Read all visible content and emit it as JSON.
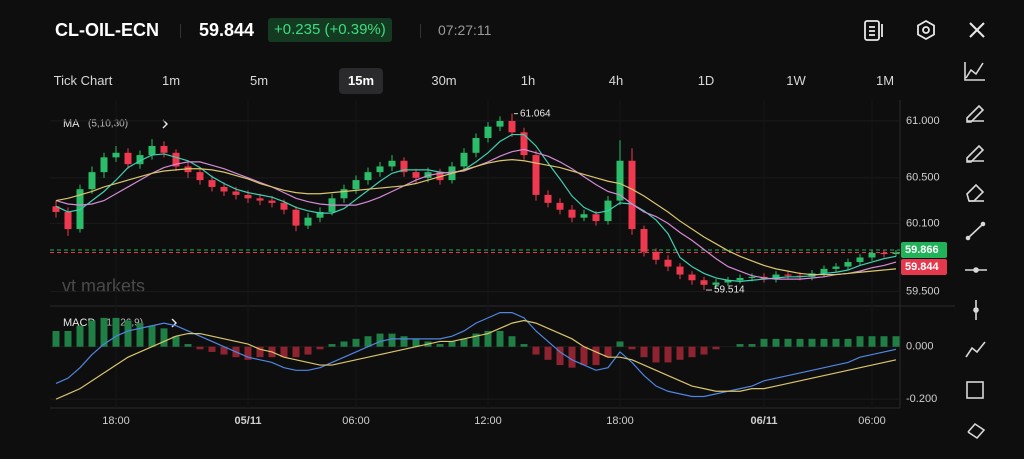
{
  "header": {
    "symbol": "CL-OIL-ECN",
    "price": "59.844",
    "change": "+0.235 (+0.39%)",
    "time": "07:27:11"
  },
  "timeframes": [
    "Tick Chart",
    "1m",
    "5m",
    "15m",
    "30m",
    "1h",
    "4h",
    "1D",
    "1W",
    "1M"
  ],
  "chart_data": [
    {
      "type": "candlestick",
      "indicator": "MA",
      "indicator_params": "(5,10,30)",
      "watermark": "vt markets",
      "up_color": "#2bbd6a",
      "down_color": "#f0394f",
      "categories": [
        null,
        null,
        null,
        null,
        null,
        "18:00",
        null,
        null,
        null,
        null,
        null,
        null,
        null,
        null,
        null,
        null,
        "05/11",
        null,
        null,
        null,
        null,
        null,
        null,
        null,
        null,
        "06:00",
        null,
        null,
        null,
        null,
        null,
        null,
        null,
        null,
        null,
        null,
        "12:00",
        null,
        null,
        null,
        null,
        null,
        null,
        null,
        null,
        null,
        null,
        "18:00",
        null,
        null,
        null,
        null,
        null,
        null,
        null,
        null,
        null,
        null,
        null,
        "06/11",
        null,
        null,
        null,
        null,
        null,
        null,
        null,
        null,
        "06:00",
        null,
        null
      ],
      "candles": [
        [
          60.25,
          60.3,
          60.15,
          60.2
        ],
        [
          60.2,
          60.24,
          59.99,
          60.05
        ],
        [
          60.05,
          60.44,
          60.02,
          60.4
        ],
        [
          60.4,
          60.6,
          60.36,
          60.55
        ],
        [
          60.55,
          60.72,
          60.5,
          60.68
        ],
        [
          60.68,
          60.78,
          60.64,
          60.72
        ],
        [
          60.72,
          60.76,
          60.58,
          60.62
        ],
        [
          60.62,
          60.74,
          60.58,
          60.7
        ],
        [
          60.7,
          60.84,
          60.66,
          60.78
        ],
        [
          60.78,
          60.82,
          60.68,
          60.72
        ],
        [
          60.72,
          60.75,
          60.56,
          60.6
        ],
        [
          60.6,
          60.64,
          60.5,
          60.55
        ],
        [
          60.55,
          60.58,
          60.44,
          60.48
        ],
        [
          60.48,
          60.52,
          60.38,
          60.42
        ],
        [
          60.42,
          60.46,
          60.34,
          60.38
        ],
        [
          60.38,
          60.42,
          60.31,
          60.35
        ],
        [
          60.35,
          60.39,
          60.28,
          60.32
        ],
        [
          60.32,
          60.36,
          60.26,
          60.3
        ],
        [
          60.3,
          60.34,
          60.24,
          60.28
        ],
        [
          60.28,
          60.31,
          60.18,
          60.22
        ],
        [
          60.22,
          60.25,
          60.03,
          60.08
        ],
        [
          60.08,
          60.19,
          60.05,
          60.15
        ],
        [
          60.15,
          60.24,
          60.11,
          60.2
        ],
        [
          60.2,
          60.36,
          60.17,
          60.32
        ],
        [
          60.32,
          60.44,
          60.28,
          60.4
        ],
        [
          60.4,
          60.52,
          60.36,
          60.48
        ],
        [
          60.48,
          60.59,
          60.44,
          60.55
        ],
        [
          60.55,
          60.64,
          60.51,
          60.6
        ],
        [
          60.6,
          60.7,
          60.56,
          60.65
        ],
        [
          60.65,
          60.68,
          60.51,
          60.55
        ],
        [
          60.55,
          60.58,
          60.45,
          60.5
        ],
        [
          60.5,
          60.59,
          60.46,
          60.55
        ],
        [
          60.55,
          60.58,
          60.44,
          60.48
        ],
        [
          60.48,
          60.64,
          60.45,
          60.6
        ],
        [
          60.6,
          60.76,
          60.57,
          60.72
        ],
        [
          60.72,
          60.89,
          60.68,
          60.85
        ],
        [
          60.85,
          60.99,
          60.81,
          60.95
        ],
        [
          60.95,
          61.04,
          60.91,
          61.0
        ],
        [
          61.0,
          61.064,
          60.86,
          60.9
        ],
        [
          60.9,
          60.94,
          60.66,
          60.7
        ],
        [
          60.7,
          60.74,
          60.3,
          60.35
        ],
        [
          60.35,
          60.39,
          60.24,
          60.28
        ],
        [
          60.28,
          60.32,
          60.18,
          60.22
        ],
        [
          60.22,
          60.26,
          60.11,
          60.15
        ],
        [
          60.15,
          60.22,
          60.12,
          60.18
        ],
        [
          60.18,
          60.21,
          60.08,
          60.12
        ],
        [
          60.12,
          60.34,
          60.09,
          60.3
        ],
        [
          60.3,
          60.83,
          60.26,
          60.65
        ],
        [
          60.65,
          60.76,
          60.0,
          60.05
        ],
        [
          60.05,
          60.08,
          59.81,
          59.85
        ],
        [
          59.85,
          59.88,
          59.74,
          59.78
        ],
        [
          59.78,
          59.82,
          59.68,
          59.72
        ],
        [
          59.72,
          59.75,
          59.61,
          59.65
        ],
        [
          59.65,
          59.68,
          59.56,
          59.6
        ],
        [
          59.6,
          59.63,
          59.514,
          59.56
        ],
        [
          59.56,
          59.61,
          59.53,
          59.58
        ],
        [
          59.58,
          59.63,
          59.55,
          59.6
        ],
        [
          59.6,
          59.65,
          59.57,
          59.62
        ],
        [
          59.62,
          59.66,
          59.59,
          59.63
        ],
        [
          59.63,
          59.66,
          59.58,
          59.61
        ],
        [
          59.61,
          59.68,
          59.58,
          59.65
        ],
        [
          59.65,
          59.68,
          59.61,
          59.64
        ],
        [
          59.64,
          59.67,
          59.6,
          59.63
        ],
        [
          59.63,
          59.69,
          59.6,
          59.66
        ],
        [
          59.66,
          59.73,
          59.63,
          59.7
        ],
        [
          59.7,
          59.75,
          59.67,
          59.72
        ],
        [
          59.72,
          59.79,
          59.69,
          59.76
        ],
        [
          59.76,
          59.83,
          59.73,
          59.8
        ],
        [
          59.8,
          59.87,
          59.77,
          59.84
        ],
        [
          59.84,
          59.87,
          59.8,
          59.83
        ],
        [
          59.83,
          59.866,
          59.81,
          59.844
        ]
      ],
      "series": [
        {
          "color": "#3fd0b0",
          "values": [
            60.25,
            60.2,
            60.22,
            60.3,
            60.38,
            60.48,
            60.59,
            60.65,
            60.7,
            60.71,
            60.68,
            60.65,
            60.59,
            60.51,
            60.45,
            60.4,
            60.37,
            60.35,
            60.33,
            60.29,
            60.24,
            60.21,
            60.19,
            60.19,
            60.23,
            60.31,
            60.39,
            60.47,
            60.54,
            60.57,
            60.57,
            60.57,
            60.55,
            60.54,
            60.57,
            60.64,
            60.72,
            60.82,
            60.88,
            60.88,
            60.78,
            60.63,
            60.49,
            60.34,
            60.24,
            60.19,
            60.21,
            60.28,
            60.27,
            60.21,
            60.13,
            60.01,
            59.8,
            59.72,
            59.66,
            59.62,
            59.6,
            59.59,
            59.6,
            59.61,
            59.62,
            59.63,
            59.63,
            59.64,
            59.66,
            59.67,
            59.69,
            59.73,
            59.76,
            59.79,
            59.81
          ]
        },
        {
          "color": "#d58ad6",
          "values": [
            60.3,
            60.27,
            60.26,
            60.27,
            60.3,
            60.36,
            60.42,
            60.48,
            60.54,
            60.59,
            60.62,
            60.64,
            60.64,
            60.61,
            60.58,
            60.54,
            60.5,
            60.46,
            60.42,
            60.37,
            60.32,
            60.29,
            60.27,
            60.26,
            60.26,
            60.26,
            60.29,
            60.33,
            60.38,
            60.43,
            60.48,
            60.52,
            60.54,
            60.55,
            60.56,
            60.6,
            60.64,
            60.69,
            60.73,
            60.75,
            60.72,
            60.69,
            60.64,
            60.58,
            60.51,
            60.44,
            60.38,
            60.35,
            60.27,
            60.2,
            60.16,
            60.1,
            60.02,
            59.95,
            59.87,
            59.79,
            59.72,
            59.68,
            59.64,
            59.62,
            59.61,
            59.61,
            59.61,
            59.62,
            59.63,
            59.65,
            59.66,
            59.68,
            59.71,
            59.73,
            59.76
          ]
        },
        {
          "color": "#d9c56a",
          "values": [
            60.3,
            60.32,
            60.35,
            60.38,
            60.42,
            60.45,
            60.48,
            60.51,
            60.54,
            60.56,
            60.57,
            60.58,
            60.58,
            60.57,
            60.55,
            60.52,
            60.49,
            60.45,
            60.42,
            60.39,
            60.37,
            60.36,
            60.36,
            60.37,
            60.38,
            60.39,
            60.4,
            60.41,
            60.42,
            60.43,
            60.45,
            60.48,
            60.51,
            60.54,
            60.57,
            60.6,
            60.63,
            60.65,
            60.66,
            60.65,
            60.63,
            60.61,
            60.59,
            60.56,
            60.53,
            60.5,
            60.47,
            60.45,
            60.4,
            60.34,
            60.27,
            60.2,
            60.12,
            60.05,
            59.98,
            59.92,
            59.86,
            59.81,
            59.77,
            59.73,
            59.7,
            59.68,
            59.66,
            59.65,
            59.65,
            59.65,
            59.66,
            59.67,
            59.68,
            59.69,
            59.7
          ]
        }
      ],
      "price_lines": [
        {
          "value": 59.866,
          "color": "#22b35a"
        },
        {
          "value": 59.844,
          "color": "#e5384c"
        }
      ],
      "ylim": [
        59.4,
        61.14
      ],
      "yticks": [
        {
          "value": 61,
          "label": "61.000"
        },
        {
          "value": 60.5,
          "label": "60.500"
        },
        {
          "value": 60.1,
          "label": "60.100"
        },
        {
          "value": 59.5,
          "label": "59.500"
        }
      ]
    },
    {
      "type": "macd",
      "indicator": "MACD",
      "indicator_params": "(12,26,9)",
      "histogram": [
        0.06,
        0.06,
        0.08,
        0.1,
        0.11,
        0.11,
        0.1,
        0.09,
        0.08,
        0.07,
        0.04,
        0.01,
        -0.01,
        -0.02,
        -0.03,
        -0.04,
        -0.05,
        -0.04,
        -0.04,
        -0.04,
        -0.04,
        -0.03,
        -0.01,
        0.01,
        0.02,
        0.03,
        0.04,
        0.05,
        0.05,
        0.04,
        0.03,
        0.02,
        0.01,
        0.02,
        0.03,
        0.05,
        0.06,
        0.06,
        0.04,
        0.01,
        -0.03,
        -0.05,
        -0.07,
        -0.08,
        -0.07,
        -0.07,
        -0.04,
        0.02,
        -0.01,
        -0.04,
        -0.06,
        -0.06,
        -0.05,
        -0.04,
        -0.03,
        -0.01,
        0.0,
        0.01,
        0.01,
        0.03,
        0.03,
        0.03,
        0.03,
        0.03,
        0.03,
        0.03,
        0.03,
        0.04,
        0.04,
        0.04,
        0.04
      ],
      "up_color": "#1f7f45",
      "down_color": "#8f2430",
      "series": [
        {
          "color": "#4f86e0",
          "values": [
            -0.14,
            -0.12,
            -0.08,
            -0.03,
            0.01,
            0.04,
            0.06,
            0.07,
            0.08,
            0.09,
            0.08,
            0.06,
            0.04,
            0.02,
            0.0,
            -0.02,
            -0.04,
            -0.05,
            -0.06,
            -0.08,
            -0.09,
            -0.09,
            -0.08,
            -0.06,
            -0.04,
            -0.02,
            0.0,
            0.02,
            0.03,
            0.03,
            0.03,
            0.03,
            0.03,
            0.04,
            0.06,
            0.09,
            0.11,
            0.13,
            0.13,
            0.11,
            0.06,
            0.02,
            -0.02,
            -0.05,
            -0.07,
            -0.09,
            -0.08,
            -0.02,
            -0.06,
            -0.11,
            -0.15,
            -0.17,
            -0.18,
            -0.19,
            -0.19,
            -0.18,
            -0.17,
            -0.16,
            -0.15,
            -0.13,
            -0.12,
            -0.11,
            -0.1,
            -0.09,
            -0.08,
            -0.07,
            -0.06,
            -0.04,
            -0.03,
            -0.02,
            -0.01
          ]
        },
        {
          "color": "#d9c56a",
          "values": [
            -0.2,
            -0.18,
            -0.16,
            -0.13,
            -0.1,
            -0.07,
            -0.04,
            -0.02,
            0.0,
            0.02,
            0.04,
            0.05,
            0.05,
            0.04,
            0.03,
            0.02,
            0.01,
            -0.01,
            -0.02,
            -0.04,
            -0.05,
            -0.06,
            -0.07,
            -0.07,
            -0.06,
            -0.05,
            -0.04,
            -0.03,
            -0.02,
            -0.01,
            0.0,
            0.01,
            0.02,
            0.02,
            0.03,
            0.04,
            0.05,
            0.07,
            0.09,
            0.1,
            0.09,
            0.07,
            0.05,
            0.03,
            0.0,
            -0.02,
            -0.04,
            -0.04,
            -0.05,
            -0.07,
            -0.09,
            -0.11,
            -0.13,
            -0.15,
            -0.16,
            -0.17,
            -0.17,
            -0.17,
            -0.16,
            -0.16,
            -0.15,
            -0.14,
            -0.13,
            -0.12,
            -0.11,
            -0.1,
            -0.09,
            -0.08,
            -0.07,
            -0.06,
            -0.05
          ]
        }
      ],
      "ylim": [
        -0.23,
        0.14
      ],
      "yticks": [
        {
          "value": 0,
          "label": "0.000"
        },
        {
          "value": -0.2,
          "label": "-0.200"
        }
      ]
    }
  ]
}
